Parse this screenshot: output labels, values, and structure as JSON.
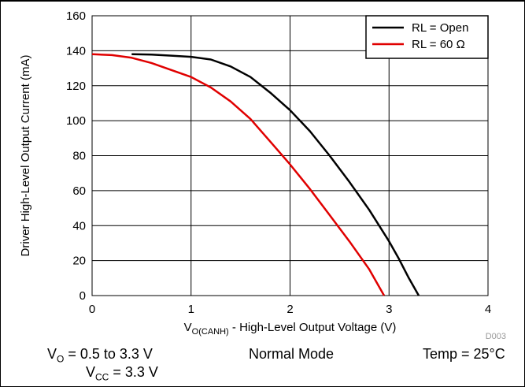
{
  "chart_data": {
    "type": "line",
    "xlabel": {
      "prefix": "V",
      "subscript": "O(CANH)",
      "suffix": " - High-Level Output Voltage (V)"
    },
    "ylabel": "Driver High-Level Output Current (mA)",
    "xlim": [
      0,
      4
    ],
    "ylim": [
      0,
      160
    ],
    "xticks": [
      "0",
      "1",
      "2",
      "3",
      "4"
    ],
    "yticks": [
      "0",
      "20",
      "40",
      "60",
      "80",
      "100",
      "120",
      "140",
      "160"
    ],
    "grid": true,
    "legend_position": "top-right",
    "figure_code": "D003",
    "series": [
      {
        "name": "RL = Open",
        "color": "#000000",
        "points": [
          [
            0.4,
            138
          ],
          [
            0.6,
            137.8
          ],
          [
            0.8,
            137.2
          ],
          [
            1.0,
            136.5
          ],
          [
            1.2,
            135
          ],
          [
            1.4,
            131
          ],
          [
            1.6,
            125
          ],
          [
            1.8,
            116
          ],
          [
            2.0,
            106
          ],
          [
            2.2,
            94
          ],
          [
            2.4,
            80
          ],
          [
            2.6,
            65
          ],
          [
            2.8,
            49
          ],
          [
            3.0,
            31
          ],
          [
            3.1,
            21
          ],
          [
            3.2,
            10
          ],
          [
            3.3,
            0
          ]
        ]
      },
      {
        "name": "RL = 60 Ω",
        "color": "#e00000",
        "points": [
          [
            0.0,
            138
          ],
          [
            0.2,
            137.5
          ],
          [
            0.4,
            136
          ],
          [
            0.6,
            133
          ],
          [
            0.8,
            129
          ],
          [
            1.0,
            125
          ],
          [
            1.2,
            119
          ],
          [
            1.4,
            111
          ],
          [
            1.6,
            101
          ],
          [
            1.8,
            88
          ],
          [
            2.0,
            75
          ],
          [
            2.2,
            61
          ],
          [
            2.4,
            46
          ],
          [
            2.6,
            31
          ],
          [
            2.8,
            15
          ],
          [
            2.95,
            0
          ]
        ]
      }
    ]
  },
  "conditions": {
    "vo": {
      "sym": "V",
      "sub": "O",
      "text": " = 0.5 to 3.3 V"
    },
    "vcc": {
      "sym": "V",
      "sub": "CC",
      "text": " = 3.3 V"
    },
    "mode": "Normal Mode",
    "temp": "Temp = 25°C"
  }
}
